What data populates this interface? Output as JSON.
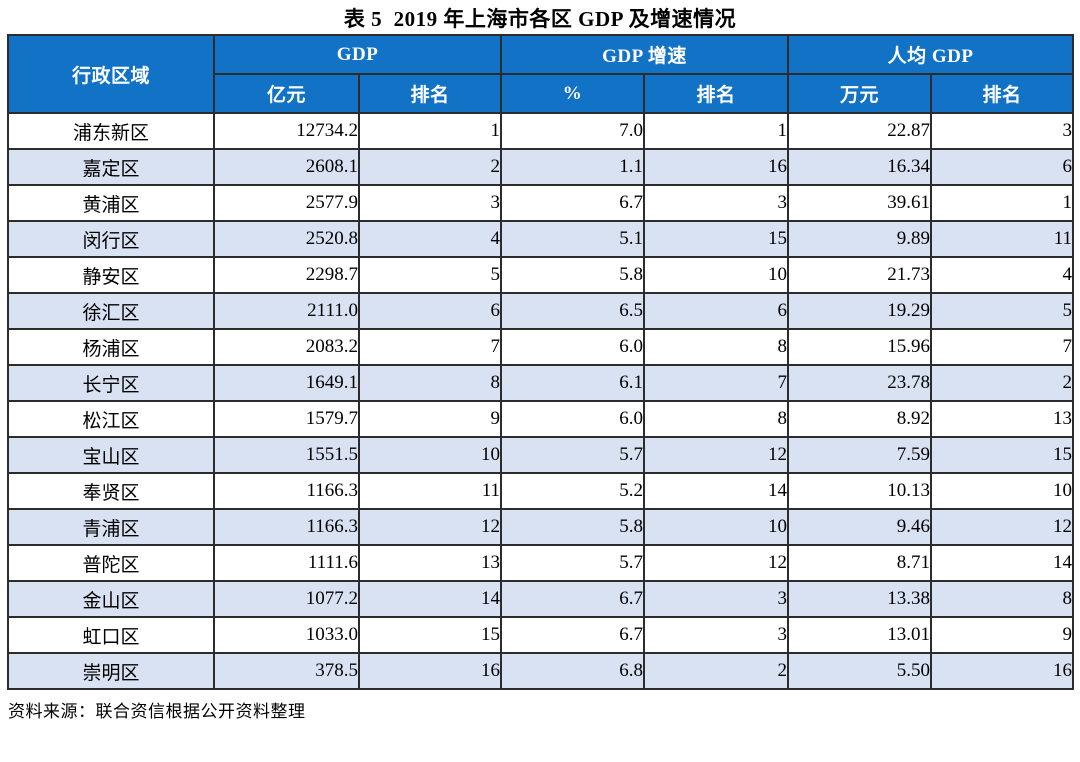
{
  "title": "表 5  2019 年上海市各区 GDP 及增速情况",
  "source_note": "资料来源：联合资信根据公开资料整理",
  "colors": {
    "header_bg": "#1272c6",
    "header_text": "#ffffff",
    "row_stripe": "#d9e2f3",
    "row_plain": "#ffffff",
    "border": "#2c2c2c",
    "text": "#000000"
  },
  "table": {
    "header": {
      "district": "行政区域",
      "gdp": "GDP",
      "growth": "GDP 增速",
      "per_capita": "人均 GDP",
      "sub": [
        "亿元",
        "排名",
        "%",
        "排名",
        "万元",
        "排名"
      ]
    },
    "rows": [
      [
        "浦东新区",
        "12734.2",
        "1",
        "7.0",
        "1",
        "22.87",
        "3"
      ],
      [
        "嘉定区",
        "2608.1",
        "2",
        "1.1",
        "16",
        "16.34",
        "6"
      ],
      [
        "黄浦区",
        "2577.9",
        "3",
        "6.7",
        "3",
        "39.61",
        "1"
      ],
      [
        "闵行区",
        "2520.8",
        "4",
        "5.1",
        "15",
        "9.89",
        "11"
      ],
      [
        "静安区",
        "2298.7",
        "5",
        "5.8",
        "10",
        "21.73",
        "4"
      ],
      [
        "徐汇区",
        "2111.0",
        "6",
        "6.5",
        "6",
        "19.29",
        "5"
      ],
      [
        "杨浦区",
        "2083.2",
        "7",
        "6.0",
        "8",
        "15.96",
        "7"
      ],
      [
        "长宁区",
        "1649.1",
        "8",
        "6.1",
        "7",
        "23.78",
        "2"
      ],
      [
        "松江区",
        "1579.7",
        "9",
        "6.0",
        "8",
        "8.92",
        "13"
      ],
      [
        "宝山区",
        "1551.5",
        "10",
        "5.7",
        "12",
        "7.59",
        "15"
      ],
      [
        "奉贤区",
        "1166.3",
        "11",
        "5.2",
        "14",
        "10.13",
        "10"
      ],
      [
        "青浦区",
        "1166.3",
        "12",
        "5.8",
        "10",
        "9.46",
        "12"
      ],
      [
        "普陀区",
        "1111.6",
        "13",
        "5.7",
        "12",
        "8.71",
        "14"
      ],
      [
        "金山区",
        "1077.2",
        "14",
        "6.7",
        "3",
        "13.38",
        "8"
      ],
      [
        "虹口区",
        "1033.0",
        "15",
        "6.7",
        "3",
        "13.01",
        "9"
      ],
      [
        "崇明区",
        "378.5",
        "16",
        "6.8",
        "2",
        "5.50",
        "16"
      ]
    ]
  }
}
